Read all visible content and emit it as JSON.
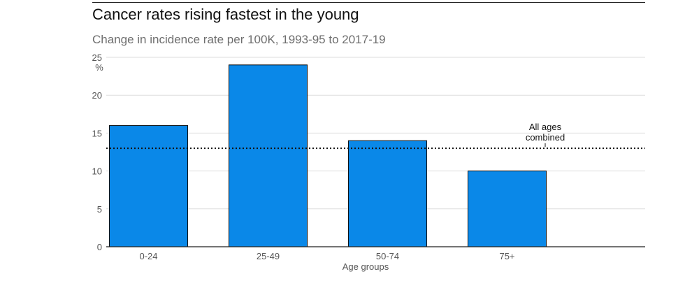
{
  "chart_data": {
    "type": "bar",
    "title": "Cancer rates rising fastest in the young",
    "subtitle": "Change in incidence rate per 100K, 1993-95 to 2017-19",
    "categories": [
      "0-24",
      "25-49",
      "50-74",
      "75+"
    ],
    "values": [
      16,
      24,
      14,
      10
    ],
    "xlabel": "Age groups",
    "ylabel": "%",
    "ylim": [
      0,
      25
    ],
    "yticks": [
      0,
      5,
      10,
      15,
      20,
      25
    ],
    "grid": true,
    "bar_color": "#0a88e8",
    "reference_line": {
      "value": 13,
      "label_lines": [
        "All ages",
        "combined"
      ]
    }
  }
}
